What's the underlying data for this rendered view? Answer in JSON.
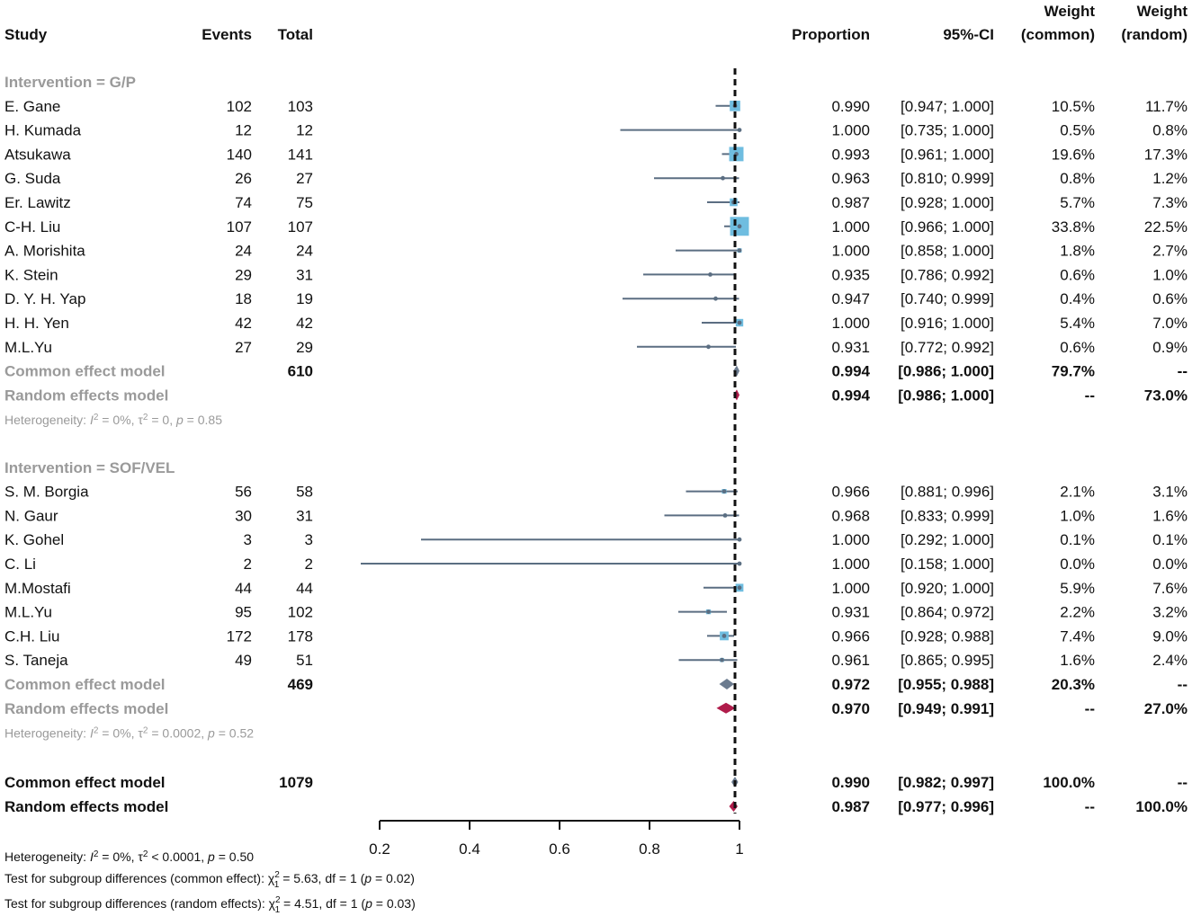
{
  "chart_data": {
    "type": "forest",
    "headers": {
      "study": "Study",
      "events": "Events",
      "total": "Total",
      "proportion": "Proportion",
      "ci": "95%-CI",
      "weight_common_1": "Weight",
      "weight_common_2": "(common)",
      "weight_random_1": "Weight",
      "weight_random_2": "(random)"
    },
    "xaxis": {
      "min": 0.2,
      "max": 1.0,
      "ticks": [
        "0.2",
        "0.4",
        "0.6",
        "0.8",
        "1"
      ],
      "tick_values": [
        0.2,
        0.4,
        0.6,
        0.8,
        1.0
      ],
      "reference": 1.0,
      "null_line": 0.99
    },
    "colors": {
      "study_square": "#6fbde0",
      "study_line": "#5b6e82",
      "common_diamond": "#6b7b8f",
      "random_diamond": "#b01c4b",
      "subgroup_text": "#9a9a9a"
    },
    "groups": [
      {
        "label": "Intervention = G/P",
        "studies": [
          {
            "study": "E. Gane",
            "events": "102",
            "total": "103",
            "prop": 0.99,
            "lo": 0.947,
            "hi": 1.0,
            "prop_text": "0.990",
            "ci_text": "[0.947; 1.000]",
            "wc": "10.5%",
            "wr": "11.7%",
            "wc_val": 10.5
          },
          {
            "study": "H. Kumada",
            "events": "12",
            "total": "12",
            "prop": 1.0,
            "lo": 0.735,
            "hi": 1.0,
            "prop_text": "1.000",
            "ci_text": "[0.735; 1.000]",
            "wc": "0.5%",
            "wr": "0.8%",
            "wc_val": 0.5
          },
          {
            "study": "Atsukawa",
            "events": "140",
            "total": "141",
            "prop": 0.993,
            "lo": 0.961,
            "hi": 1.0,
            "prop_text": "0.993",
            "ci_text": "[0.961; 1.000]",
            "wc": "19.6%",
            "wr": "17.3%",
            "wc_val": 19.6
          },
          {
            "study": "G. Suda",
            "events": "26",
            "total": "27",
            "prop": 0.963,
            "lo": 0.81,
            "hi": 0.999,
            "prop_text": "0.963",
            "ci_text": "[0.810; 0.999]",
            "wc": "0.8%",
            "wr": "1.2%",
            "wc_val": 0.8
          },
          {
            "study": "Er. Lawitz",
            "events": "74",
            "total": "75",
            "prop": 0.987,
            "lo": 0.928,
            "hi": 1.0,
            "prop_text": "0.987",
            "ci_text": "[0.928; 1.000]",
            "wc": "5.7%",
            "wr": "7.3%",
            "wc_val": 5.7
          },
          {
            "study": "C-H. Liu",
            "events": "107",
            "total": "107",
            "prop": 1.0,
            "lo": 0.966,
            "hi": 1.0,
            "prop_text": "1.000",
            "ci_text": "[0.966; 1.000]",
            "wc": "33.8%",
            "wr": "22.5%",
            "wc_val": 33.8
          },
          {
            "study": "A. Morishita",
            "events": "24",
            "total": "24",
            "prop": 1.0,
            "lo": 0.858,
            "hi": 1.0,
            "prop_text": "1.000",
            "ci_text": "[0.858; 1.000]",
            "wc": "1.8%",
            "wr": "2.7%",
            "wc_val": 1.8
          },
          {
            "study": "K. Stein",
            "events": "29",
            "total": "31",
            "prop": 0.935,
            "lo": 0.786,
            "hi": 0.992,
            "prop_text": "0.935",
            "ci_text": "[0.786; 0.992]",
            "wc": "0.6%",
            "wr": "1.0%",
            "wc_val": 0.6
          },
          {
            "study": "D. Y. H. Yap",
            "events": "18",
            "total": "19",
            "prop": 0.947,
            "lo": 0.74,
            "hi": 0.999,
            "prop_text": "0.947",
            "ci_text": "[0.740; 0.999]",
            "wc": "0.4%",
            "wr": "0.6%",
            "wc_val": 0.4
          },
          {
            "study": "H. H. Yen",
            "events": "42",
            "total": "42",
            "prop": 1.0,
            "lo": 0.916,
            "hi": 1.0,
            "prop_text": "1.000",
            "ci_text": "[0.916; 1.000]",
            "wc": "5.4%",
            "wr": "7.0%",
            "wc_val": 5.4
          },
          {
            "study": "M.L.Yu",
            "events": "27",
            "total": "29",
            "prop": 0.931,
            "lo": 0.772,
            "hi": 0.992,
            "prop_text": "0.931",
            "ci_text": "[0.772; 0.992]",
            "wc": "0.6%",
            "wr": "0.9%",
            "wc_val": 0.6
          }
        ],
        "common": {
          "label": "Common effect model",
          "total": "610",
          "est": 0.994,
          "lo": 0.986,
          "hi": 1.0,
          "prop_text": "0.994",
          "ci_text": "[0.986; 1.000]",
          "wc": "79.7%",
          "wr": "--"
        },
        "random": {
          "label": "Random effects model",
          "est": 0.994,
          "lo": 0.986,
          "hi": 1.0,
          "prop_text": "0.994",
          "ci_text": "[0.986; 1.000]",
          "wc": "--",
          "wr": "73.0%"
        },
        "het": {
          "prefix": "Heterogeneity: ",
          "i2_sym": "I",
          "sup2": "2",
          "i2_val": " = 0%, ",
          "tau_sym": "τ",
          "tau_val": " = 0, ",
          "p_sym": "p",
          "p_val": " = 0.85"
        }
      },
      {
        "label": "Intervention = SOF/VEL",
        "studies": [
          {
            "study": "S. M. Borgia",
            "events": "56",
            "total": "58",
            "prop": 0.966,
            "lo": 0.881,
            "hi": 0.996,
            "prop_text": "0.966",
            "ci_text": "[0.881; 0.996]",
            "wc": "2.1%",
            "wr": "3.1%",
            "wc_val": 2.1
          },
          {
            "study": "N. Gaur",
            "events": "30",
            "total": "31",
            "prop": 0.968,
            "lo": 0.833,
            "hi": 0.999,
            "prop_text": "0.968",
            "ci_text": "[0.833; 0.999]",
            "wc": "1.0%",
            "wr": "1.6%",
            "wc_val": 1.0
          },
          {
            "study": "K. Gohel",
            "events": "3",
            "total": "3",
            "prop": 1.0,
            "lo": 0.292,
            "hi": 1.0,
            "prop_text": "1.000",
            "ci_text": "[0.292; 1.000]",
            "wc": "0.1%",
            "wr": "0.1%",
            "wc_val": 0.1
          },
          {
            "study": "C. Li",
            "events": "2",
            "total": "2",
            "prop": 1.0,
            "lo": 0.158,
            "hi": 1.0,
            "prop_text": "1.000",
            "ci_text": "[0.158; 1.000]",
            "wc": "0.0%",
            "wr": "0.0%",
            "wc_val": 0.0
          },
          {
            "study": "M.Mostafi",
            "events": "44",
            "total": "44",
            "prop": 1.0,
            "lo": 0.92,
            "hi": 1.0,
            "prop_text": "1.000",
            "ci_text": "[0.920; 1.000]",
            "wc": "5.9%",
            "wr": "7.6%",
            "wc_val": 5.9
          },
          {
            "study": "M.L.Yu",
            "events": "95",
            "total": "102",
            "prop": 0.931,
            "lo": 0.864,
            "hi": 0.972,
            "prop_text": "0.931",
            "ci_text": "[0.864; 0.972]",
            "wc": "2.2%",
            "wr": "3.2%",
            "wc_val": 2.2
          },
          {
            "study": "C.H. Liu",
            "events": "172",
            "total": "178",
            "prop": 0.966,
            "lo": 0.928,
            "hi": 0.988,
            "prop_text": "0.966",
            "ci_text": "[0.928; 0.988]",
            "wc": "7.4%",
            "wr": "9.0%",
            "wc_val": 7.4
          },
          {
            "study": "S. Taneja",
            "events": "49",
            "total": "51",
            "prop": 0.961,
            "lo": 0.865,
            "hi": 0.995,
            "prop_text": "0.961",
            "ci_text": "[0.865; 0.995]",
            "wc": "1.6%",
            "wr": "2.4%",
            "wc_val": 1.6
          }
        ],
        "common": {
          "label": "Common effect model",
          "total": "469",
          "est": 0.972,
          "lo": 0.955,
          "hi": 0.988,
          "prop_text": "0.972",
          "ci_text": "[0.955; 0.988]",
          "wc": "20.3%",
          "wr": "--"
        },
        "random": {
          "label": "Random effects model",
          "est": 0.97,
          "lo": 0.949,
          "hi": 0.991,
          "prop_text": "0.970",
          "ci_text": "[0.949; 0.991]",
          "wc": "--",
          "wr": "27.0%"
        },
        "het": {
          "prefix": "Heterogeneity: ",
          "i2_sym": "I",
          "sup2": "2",
          "i2_val": " = 0%, ",
          "tau_sym": "τ",
          "tau_val": " = 0.0002, ",
          "p_sym": "p",
          "p_val": " = 0.52"
        }
      }
    ],
    "overall": {
      "common": {
        "label": "Common effect model",
        "total": "1079",
        "est": 0.99,
        "lo": 0.982,
        "hi": 0.997,
        "prop_text": "0.990",
        "ci_text": "[0.982; 0.997]",
        "wc": "100.0%",
        "wr": "--"
      },
      "random": {
        "label": "Random effects model",
        "est": 0.987,
        "lo": 0.977,
        "hi": 0.996,
        "prop_text": "0.987",
        "ci_text": "[0.977; 0.996]",
        "wc": "--",
        "wr": "100.0%"
      }
    },
    "footer": {
      "het": {
        "prefix": "Heterogeneity: ",
        "i2_sym": "I",
        "sup2": "2",
        "i2_val": " = 0%, ",
        "tau_sym": "τ",
        "tau_val": " < 0.0001, ",
        "p_sym": "p",
        "p_val": " = 0.50"
      },
      "test_common": {
        "prefix": "Test for subgroup differences (common effect): ",
        "chi": "χ",
        "sub": "1",
        "sup": "2",
        "rest1": " = 5.63, df = 1 (",
        "p_sym": "p",
        "rest2": " = 0.02)"
      },
      "test_random": {
        "prefix": "Test for subgroup differences (random effects): ",
        "chi": "χ",
        "sub": "1",
        "sup": "2",
        "rest1": " = 4.51, df = 1 (",
        "p_sym": "p",
        "rest2": " = 0.03)"
      }
    }
  }
}
